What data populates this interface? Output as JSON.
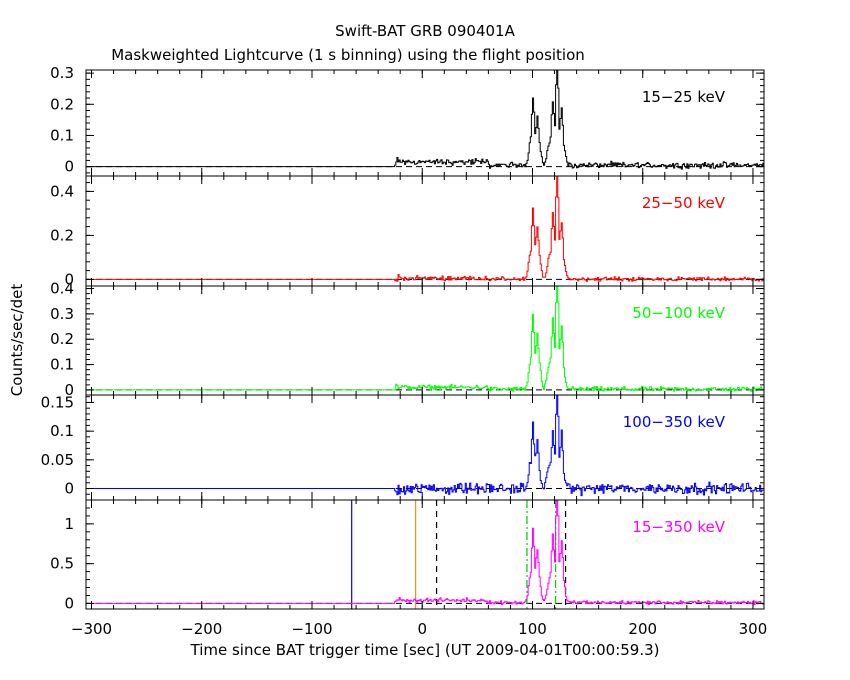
{
  "chart_data": {
    "type": "line",
    "title": "Swift-BAT GRB 090401A",
    "subtitle": "Maskweighted Lightcurve (1 s binning) using the flight position",
    "xlabel": "Time since BAT trigger time [sec] (UT 2009-04-01T00:00:59.3)",
    "ylabel": "Counts/sec/det",
    "xlim": [
      -305,
      310
    ],
    "xticks": [
      -300,
      -200,
      -100,
      0,
      100,
      200,
      300
    ],
    "xtick_labels": [
      "−300",
      "−200",
      "−100",
      "0",
      "100",
      "200",
      "300"
    ],
    "data_start": -25,
    "pulses": [
      {
        "t0": 95,
        "t1": 108,
        "peaks": [
          [
            100,
            0.55
          ],
          [
            104,
            0.35
          ]
        ]
      },
      {
        "t0": 112,
        "t1": 130,
        "peaks": [
          [
            118,
            0.5
          ],
          [
            122,
            1.0
          ],
          [
            126,
            0.45
          ]
        ]
      }
    ],
    "panels": [
      {
        "name": "15-25 keV",
        "label": "15−25 keV",
        "color": "#000000",
        "ylim": [
          -0.03,
          0.31
        ],
        "yticks": [
          0,
          0.1,
          0.2,
          0.3
        ],
        "ytick_labels": [
          "0",
          "0.1",
          "0.2",
          "0.3"
        ],
        "peak_value": 0.29,
        "noise": 0.008,
        "pre_level": 0.015
      },
      {
        "name": "25-50 keV",
        "label": "25−50 keV",
        "color": "#ff0000",
        "ylim": [
          -0.03,
          0.47
        ],
        "yticks": [
          0,
          0.2,
          0.4
        ],
        "ytick_labels": [
          "0",
          "0.2",
          "0.4"
        ],
        "peak_value": 0.42,
        "noise": 0.008,
        "pre_level": 0.005
      },
      {
        "name": "50-100 keV",
        "label": "50−100 keV",
        "color": "#00ff00",
        "ylim": [
          -0.02,
          0.41
        ],
        "yticks": [
          0,
          0.1,
          0.2,
          0.3,
          0.4
        ],
        "ytick_labels": [
          "0",
          "0.1",
          "0.2",
          "0.3",
          "0.4"
        ],
        "peak_value": 0.39,
        "noise": 0.008,
        "pre_level": 0.01
      },
      {
        "name": "100-350 keV",
        "label": "100−350 keV",
        "color": "#0000ff",
        "ylim": [
          -0.02,
          0.163
        ],
        "yticks": [
          0,
          0.05,
          0.1,
          0.15
        ],
        "ytick_labels": [
          "0",
          "0.05",
          "0.1",
          "0.15"
        ],
        "peak_value": 0.145,
        "noise": 0.008,
        "pre_level": 0.0
      },
      {
        "name": "15-350 keV",
        "label": "15−350 keV",
        "color": "#ff00ff",
        "ylim": [
          -0.07,
          1.3
        ],
        "yticks": [
          0,
          0.5,
          1
        ],
        "ytick_labels": [
          "0",
          "0.5",
          "1"
        ],
        "peak_value": 1.22,
        "noise": 0.02,
        "pre_level": 0.04
      }
    ],
    "markers": [
      {
        "x": -64,
        "color": "#0000ff",
        "style": "solid"
      },
      {
        "x": -6,
        "color": "#ff8c00",
        "style": "solid"
      },
      {
        "x": 13,
        "color": "#000000",
        "style": "dashed"
      },
      {
        "x": 95,
        "color": "#00cc00",
        "style": "dashdot"
      },
      {
        "x": 121,
        "color": "#00cc00",
        "style": "dashdot"
      },
      {
        "x": 130,
        "color": "#000000",
        "style": "dashed"
      }
    ]
  }
}
